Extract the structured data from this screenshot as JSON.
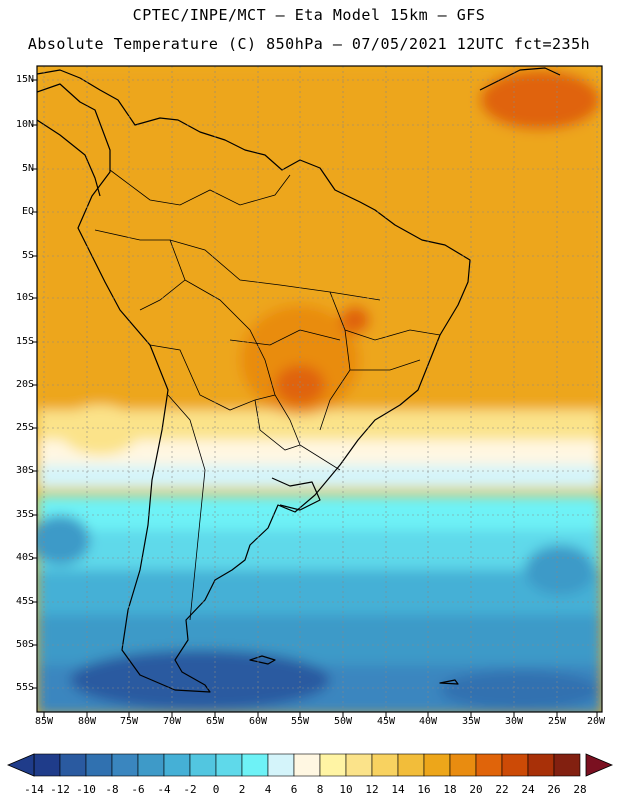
{
  "header": {
    "line1": "CPTEC/INPE/MCT —  Eta Model 15km — GFS",
    "line2": "Absolute Temperature (C) 850hPa — 07/05/2021 12UTC fct=235h"
  },
  "map": {
    "lat_labels": [
      "15N",
      "10N",
      "5N",
      "EQ",
      "5S",
      "10S",
      "15S",
      "20S",
      "25S",
      "30S",
      "35S",
      "40S",
      "45S",
      "50S",
      "55S"
    ],
    "lon_labels": [
      "85W",
      "80W",
      "75W",
      "70W",
      "65W",
      "60W",
      "55W",
      "50W",
      "45W",
      "40W",
      "35W",
      "30W",
      "25W",
      "20W"
    ]
  },
  "colorbar": {
    "labels": [
      "-14",
      "-12",
      "-10",
      "-8",
      "-6",
      "-4",
      "-2",
      "0",
      "2",
      "4",
      "6",
      "8",
      "10",
      "12",
      "14",
      "16",
      "18",
      "20",
      "22",
      "24",
      "26",
      "28"
    ],
    "colors": [
      "#1f3c8a",
      "#2a5aa0",
      "#3071b0",
      "#3a86bf",
      "#3e9ac8",
      "#45b0d6",
      "#52c6e0",
      "#5fd9ea",
      "#6ef2f6",
      "#d4f4fa",
      "#fff7e2",
      "#fff4a4",
      "#fbe38a",
      "#f8d260",
      "#f2bd3a",
      "#eda61a",
      "#e98c10",
      "#e0640a",
      "#cc4a06",
      "#a83008",
      "#822010"
    ]
  }
}
